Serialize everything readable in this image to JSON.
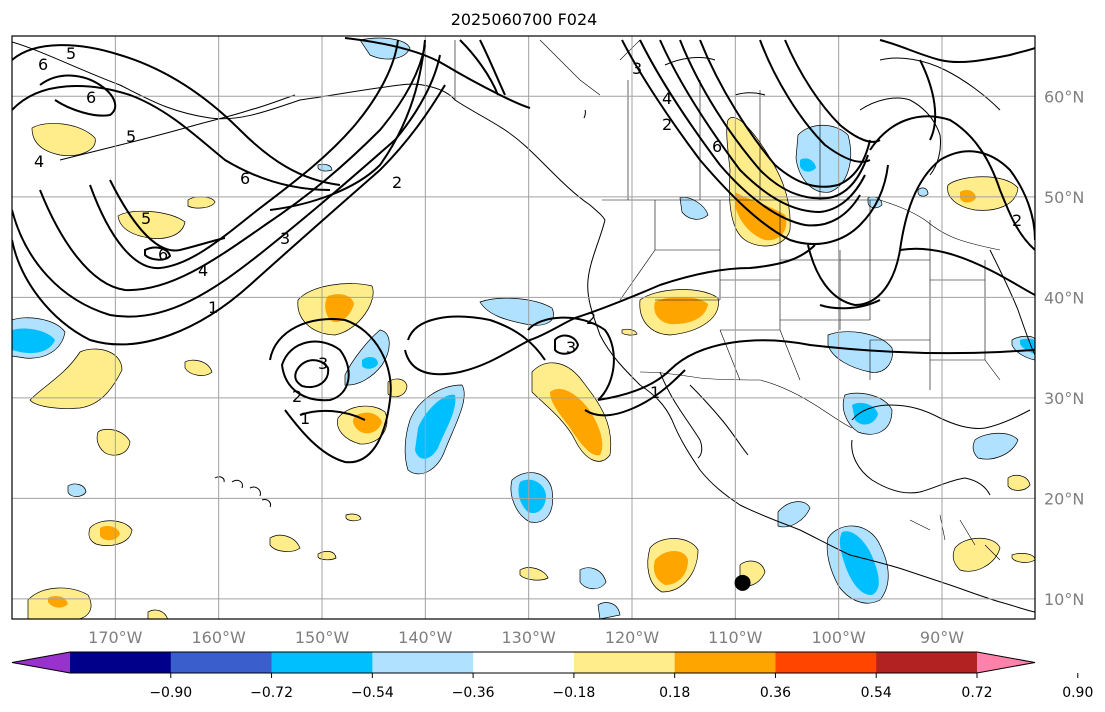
{
  "title": "2025060700 F024",
  "map": {
    "projection": "PlateCarree",
    "lon_range": [
      -180,
      -81
    ],
    "lat_range": [
      8,
      66
    ],
    "lon_ticks": [
      {
        "lon": -170,
        "label": "170°W"
      },
      {
        "lon": -160,
        "label": "160°W"
      },
      {
        "lon": -150,
        "label": "150°W"
      },
      {
        "lon": -140,
        "label": "140°W"
      },
      {
        "lon": -130,
        "label": "130°W"
      },
      {
        "lon": -120,
        "label": "120°W"
      },
      {
        "lon": -110,
        "label": "110°W"
      },
      {
        "lon": -100,
        "label": "100°W"
      },
      {
        "lon": -90,
        "label": "90°W"
      }
    ],
    "lat_ticks": [
      {
        "lat": 10,
        "label": "10°N"
      },
      {
        "lat": 20,
        "label": "20°N"
      },
      {
        "lat": 30,
        "label": "30°N"
      },
      {
        "lat": 40,
        "label": "40°N"
      },
      {
        "lat": 50,
        "label": "50°N"
      },
      {
        "lat": 60,
        "label": "60°N"
      }
    ],
    "gridlines": true,
    "marker": {
      "lon": -109.3,
      "lat": 11.6,
      "shape": "filled-circle",
      "color": "#000000"
    }
  },
  "colorbar": {
    "orientation": "horizontal",
    "extend": "both",
    "colors": [
      "#9932cc",
      "#00008b",
      "#3a5fcd",
      "#00bfff",
      "#b0e2ff",
      "#ffffff",
      "#ffec8b",
      "#ffa500",
      "#ff4500",
      "#b22222",
      "#ff82ab"
    ],
    "tick_labels": [
      "−0.90",
      "−0.72",
      "−0.54",
      "−0.36",
      "−0.18",
      "0.18",
      "0.36",
      "0.54",
      "0.72",
      "0.90"
    ]
  },
  "contour_labels": [
    "1",
    "2",
    "3",
    "4",
    "5",
    "6"
  ],
  "colors": {
    "pos1": "#ffec8b",
    "pos2": "#ffa500",
    "neg1": "#b0e2ff",
    "neg2": "#00bfff",
    "grid": "#a0a0a0"
  }
}
